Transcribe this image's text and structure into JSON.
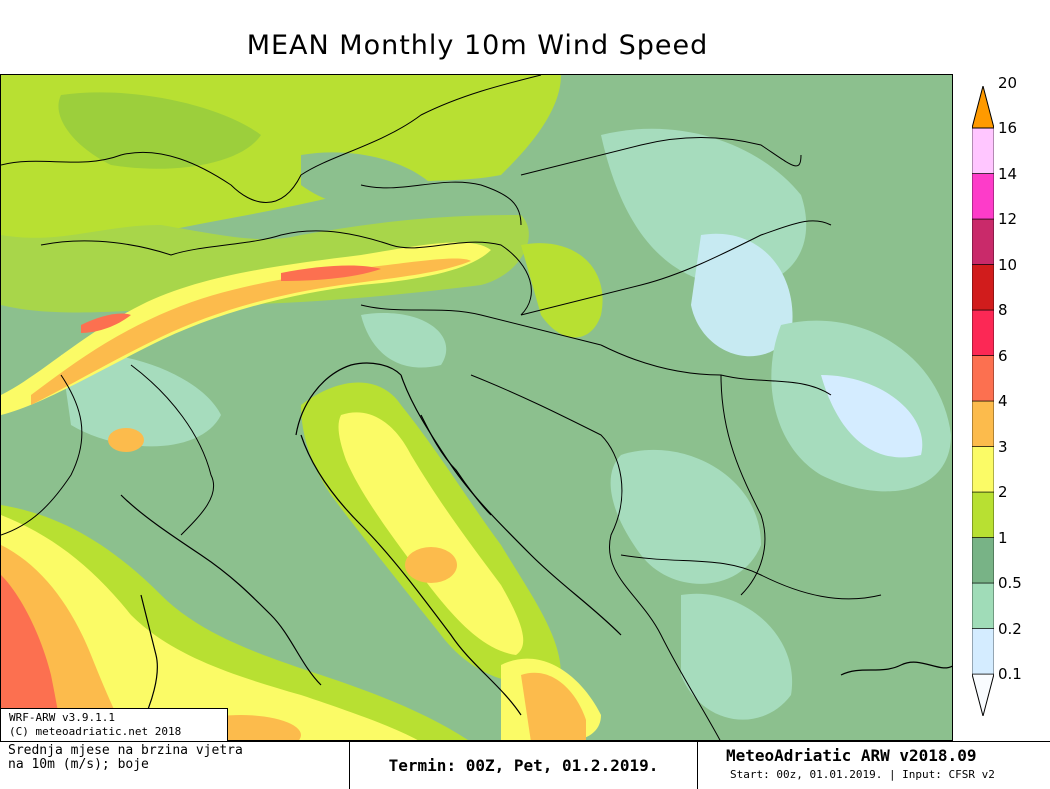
{
  "title": "MEAN Monthly 10m Wind Speed",
  "legend": {
    "colors": [
      "#f9fcff",
      "#d4ecff",
      "#a0dcb8",
      "#78b386",
      "#b8e032",
      "#fbfb66",
      "#fcbb4c",
      "#fc7050",
      "#fc2855",
      "#d11c1c",
      "#c92a6a",
      "#fd3cc9",
      "#ffc6ff",
      "#ff9a00"
    ],
    "labels": [
      "0.1",
      "0.2",
      "0.5",
      "1",
      "2",
      "3",
      "4",
      "6",
      "8",
      "10",
      "12",
      "14",
      "16",
      "20"
    ]
  },
  "model_box": {
    "line1": "WRF-ARW v3.9.1.1",
    "line2": "(C) meteoadriatic.net 2018"
  },
  "footer": {
    "description_line1": "Srednja mjese  na brzina vjetra",
    "description_line2": "na 10m (m/s); boje",
    "term": "Termin: 00Z, Pet, 01.2.2019.",
    "brand": "MeteoAdriatic ARW v2018.09",
    "start_info": "Start: 00z, 01.01.2019. | Input: CFSR v2"
  }
}
